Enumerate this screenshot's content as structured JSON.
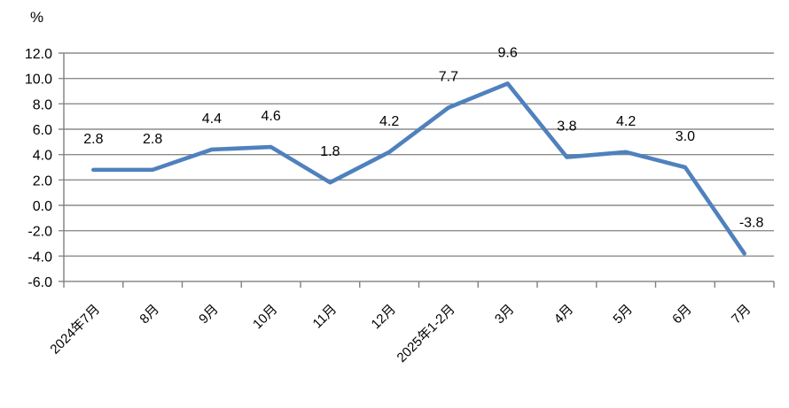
{
  "chart_data": {
    "type": "line",
    "title": "",
    "unit_label": "%",
    "categories": [
      "2024年7月",
      "8月",
      "9月",
      "10月",
      "11月",
      "12月",
      "2025年1-2月",
      "3月",
      "4月",
      "5月",
      "6月",
      "7月"
    ],
    "series": [
      {
        "name": "monthly-growth-rate",
        "values": [
          2.8,
          2.8,
          4.4,
          4.6,
          1.8,
          4.2,
          7.7,
          9.6,
          3.8,
          4.2,
          3.0,
          -3.8
        ],
        "data_labels": [
          "2.8",
          "2.8",
          "4.4",
          "4.6",
          "1.8",
          "4.2",
          "7.7",
          "9.6",
          "3.8",
          "4.2",
          "3.0",
          "-3.8"
        ]
      }
    ],
    "xlabel": "",
    "ylabel": "%",
    "ylim": [
      -6.0,
      12.0
    ],
    "y_ticks": [
      12.0,
      10.0,
      8.0,
      6.0,
      4.0,
      2.0,
      0.0,
      -2.0,
      -4.0,
      -6.0
    ],
    "y_tick_labels": [
      "12.0",
      "10.0",
      "8.0",
      "6.0",
      "4.0",
      "2.0",
      "0.0",
      "-2.0",
      "-4.0",
      "-6.0"
    ],
    "grid": true,
    "legend_position": "none",
    "colors": {
      "line": "#4F81BD",
      "gridline": "#8C8C8C",
      "axis": "#7F7F7F",
      "text": "#000000",
      "background": "#FFFFFF"
    }
  }
}
